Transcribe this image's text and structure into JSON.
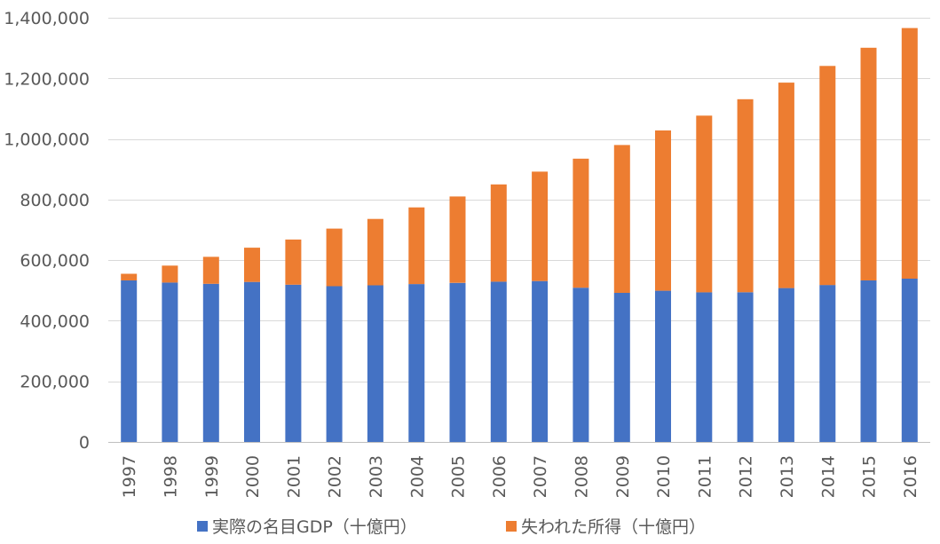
{
  "chart_data": {
    "type": "bar",
    "stacked": true,
    "categories": [
      "1997",
      "1998",
      "1999",
      "2000",
      "2001",
      "2002",
      "2003",
      "2004",
      "2005",
      "2006",
      "2007",
      "2008",
      "2009",
      "2010",
      "2011",
      "2012",
      "2013",
      "2014",
      "2015",
      "2016"
    ],
    "series": [
      {
        "name": "実際の名目GDP（十億円）",
        "color": "#4472C4",
        "values": [
          533000,
          526000,
          522000,
          528000,
          519000,
          514000,
          517000,
          521000,
          525000,
          529000,
          531000,
          509000,
          492000,
          499000,
          494000,
          494000,
          508000,
          518000,
          533000,
          539000
        ]
      },
      {
        "name": "失われた所得（十億円）",
        "color": "#ED7D31",
        "values": [
          22000,
          56000,
          89000,
          113000,
          149000,
          190000,
          219000,
          253000,
          285000,
          321000,
          361000,
          426000,
          488000,
          529000,
          583000,
          637000,
          678000,
          723000,
          768000,
          827000
        ]
      }
    ],
    "ylim": [
      0,
      1400000
    ],
    "yticks": [
      "0",
      "200,000",
      "400,000",
      "600,000",
      "800,000",
      "1,000,000",
      "1,200,000",
      "1,400,000"
    ],
    "ytick_values": [
      0,
      200000,
      400000,
      600000,
      800000,
      1000000,
      1200000,
      1400000
    ],
    "grid": true,
    "legend_position": "bottom",
    "xlabel": "",
    "ylabel": "",
    "title": ""
  }
}
